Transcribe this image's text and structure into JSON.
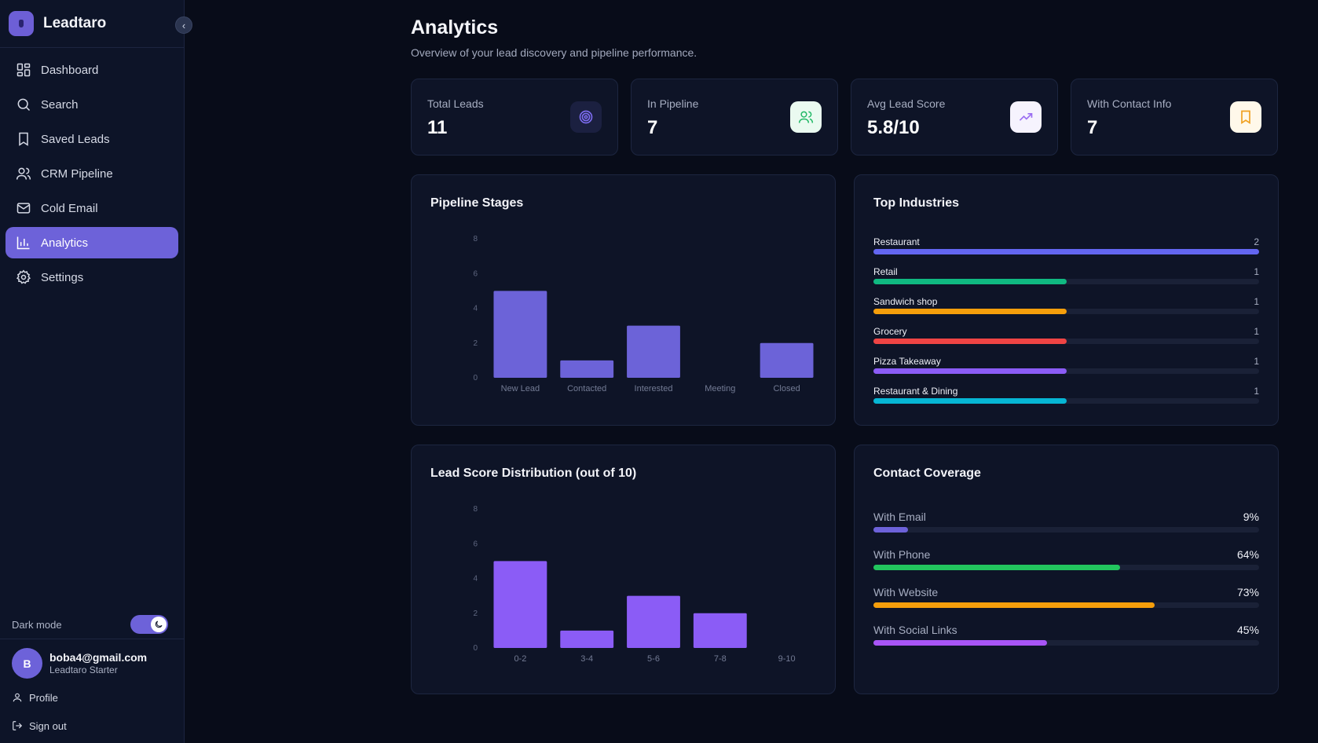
{
  "app": {
    "name": "Leadtaro",
    "collapse_icon": "chevron-left-icon"
  },
  "nav": [
    {
      "label": "Dashboard",
      "icon": "dashboard-grid-icon",
      "active": false
    },
    {
      "label": "Search",
      "icon": "search-icon",
      "active": false
    },
    {
      "label": "Saved Leads",
      "icon": "bookmark-icon",
      "active": false
    },
    {
      "label": "CRM Pipeline",
      "icon": "users-icon",
      "active": false
    },
    {
      "label": "Cold Email",
      "icon": "mail-icon",
      "active": false
    },
    {
      "label": "Analytics",
      "icon": "bar-chart-icon",
      "active": true
    },
    {
      "label": "Settings",
      "icon": "gear-icon",
      "active": false
    }
  ],
  "dark_mode": {
    "label": "Dark mode",
    "enabled": true
  },
  "user": {
    "initial": "B",
    "email": "boba4@gmail.com",
    "plan": "Leadtaro Starter",
    "profile_label": "Profile",
    "signout_label": "Sign out"
  },
  "page": {
    "title": "Analytics",
    "subtitle": "Overview of your lead discovery and pipeline performance."
  },
  "stats": [
    {
      "label": "Total Leads",
      "value": "11",
      "icon": "target-icon",
      "icon_color": "#7c6cf0",
      "icon_bg": "#1b2040"
    },
    {
      "label": "In Pipeline",
      "value": "7",
      "icon": "users-icon",
      "icon_color": "#22b866",
      "icon_bg": "#eafaf0"
    },
    {
      "label": "Avg Lead Score",
      "value": "5.8/10",
      "icon": "trending-up-icon",
      "icon_color": "#9a6df2",
      "icon_bg": "#f6f3fe"
    },
    {
      "label": "With Contact Info",
      "value": "7",
      "icon": "bookmark-icon",
      "icon_color": "#f0a020",
      "icon_bg": "#fff8ea"
    }
  ],
  "panels": {
    "pipeline_title": "Pipeline Stages",
    "industries_title": "Top Industries",
    "score_title": "Lead Score Distribution (out of 10)",
    "coverage_title": "Contact Coverage"
  },
  "chart_data": [
    {
      "type": "bar",
      "title": "Pipeline Stages",
      "categories": [
        "New Lead",
        "Contacted",
        "Interested",
        "Meeting",
        "Closed"
      ],
      "values": [
        5,
        1,
        3,
        0,
        2
      ],
      "ylim": [
        0,
        8
      ],
      "yticks": [
        0,
        2,
        4,
        6,
        8
      ],
      "color": "#6c63d8"
    },
    {
      "type": "bar",
      "title": "Lead Score Distribution (out of 10)",
      "categories": [
        "0-2",
        "3-4",
        "5-6",
        "7-8",
        "9-10"
      ],
      "values": [
        5,
        1,
        3,
        2,
        0
      ],
      "ylim": [
        0,
        8
      ],
      "yticks": [
        0,
        2,
        4,
        6,
        8
      ],
      "color": "#8b5cf6"
    }
  ],
  "industries": {
    "max": 2,
    "items": [
      {
        "name": "Restaurant",
        "count": 2,
        "color": "#6366f1"
      },
      {
        "name": "Retail",
        "count": 1,
        "color": "#10b981"
      },
      {
        "name": "Sandwich shop",
        "count": 1,
        "color": "#f59e0b"
      },
      {
        "name": "Grocery",
        "count": 1,
        "color": "#ef4444"
      },
      {
        "name": "Pizza Takeaway",
        "count": 1,
        "color": "#8b5cf6"
      },
      {
        "name": "Restaurant & Dining",
        "count": 1,
        "color": "#06b6d4"
      }
    ]
  },
  "coverage": [
    {
      "name": "With Email",
      "pct": "9%",
      "value": 9,
      "color": "#6d62d9"
    },
    {
      "name": "With Phone",
      "pct": "64%",
      "value": 64,
      "color": "#22c55e"
    },
    {
      "name": "With Website",
      "pct": "73%",
      "value": 73,
      "color": "#f59e0b"
    },
    {
      "name": "With Social Links",
      "pct": "45%",
      "value": 45,
      "color": "#a855f7"
    }
  ]
}
